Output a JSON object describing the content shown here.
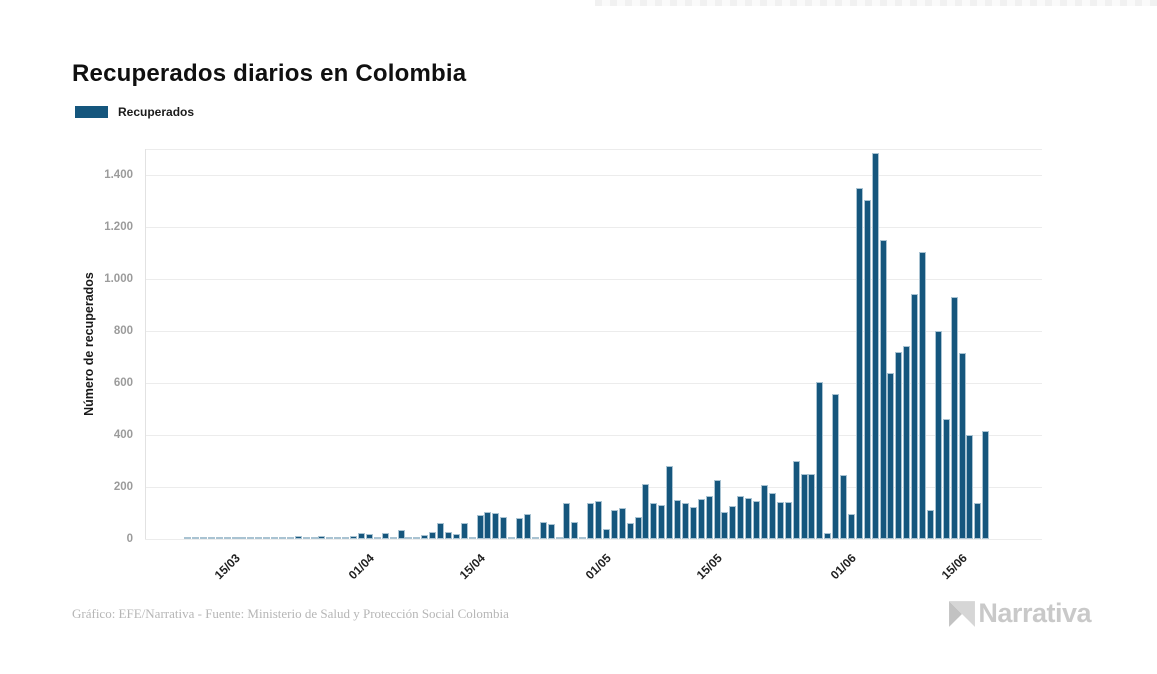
{
  "title": "Recuperados diarios en Colombia",
  "legend": {
    "label": "Recuperados"
  },
  "footer": {
    "credit": "Gráfico: EFE/Narrativa - Fuente: Ministerio de Salud y Protección Social Colombia",
    "logo_text": "Narrativa"
  },
  "colors": {
    "bar_fill": "#15567D",
    "bar_outline": "#A9C3D2",
    "grid": "#ECECEC",
    "axis": "#E2E2E2",
    "ytick_text": "#9B9B9B",
    "xtick_text": "#1F1F1F",
    "title_text": "#101010",
    "footer_text": "#B6B6B6",
    "logo_text": "#C9C9C9"
  },
  "chart_data": {
    "type": "bar",
    "title": "Recuperados diarios en Colombia",
    "series_name": "Recuperados",
    "xlabel": "",
    "ylabel": "Número de recuperados",
    "ylim": [
      0,
      1500
    ],
    "grid": true,
    "legend_position": "top-left",
    "yticks": [
      0,
      200,
      400,
      600,
      800,
      1000,
      1200,
      1400
    ],
    "ytick_labels": [
      "0",
      "200",
      "400",
      "600",
      "800",
      "1.000",
      "1.200",
      "1.400"
    ],
    "xticks": [
      "15/03",
      "01/04",
      "15/04",
      "01/05",
      "15/05",
      "01/06",
      "15/06"
    ],
    "x": [
      "09/03",
      "10/03",
      "11/03",
      "12/03",
      "13/03",
      "14/03",
      "15/03",
      "16/03",
      "17/03",
      "18/03",
      "19/03",
      "20/03",
      "21/03",
      "22/03",
      "23/03",
      "24/03",
      "25/03",
      "26/03",
      "27/03",
      "28/03",
      "29/03",
      "30/03",
      "31/03",
      "01/04",
      "02/04",
      "03/04",
      "04/04",
      "05/04",
      "06/04",
      "07/04",
      "08/04",
      "09/04",
      "10/04",
      "11/04",
      "12/04",
      "13/04",
      "14/04",
      "15/04",
      "16/04",
      "17/04",
      "18/04",
      "19/04",
      "20/04",
      "21/04",
      "22/04",
      "23/04",
      "24/04",
      "25/04",
      "26/04",
      "27/04",
      "28/04",
      "29/04",
      "30/04",
      "01/05",
      "02/05",
      "03/05",
      "04/05",
      "05/05",
      "06/05",
      "07/05",
      "08/05",
      "09/05",
      "10/05",
      "11/05",
      "12/05",
      "13/05",
      "14/05",
      "15/05",
      "16/05",
      "17/05",
      "18/05",
      "19/05",
      "20/05",
      "21/05",
      "22/05",
      "23/05",
      "24/05",
      "25/05",
      "26/05",
      "27/05",
      "28/05",
      "29/05",
      "30/05",
      "31/05",
      "01/06",
      "02/06",
      "03/06",
      "04/06",
      "05/06",
      "06/06",
      "07/06",
      "08/06",
      "09/06",
      "10/06",
      "11/06",
      "12/06",
      "13/06",
      "14/06",
      "15/06",
      "16/06",
      "17/06",
      "18/06"
    ],
    "values": [
      0,
      0,
      0,
      0,
      0,
      0,
      0,
      0,
      0,
      0,
      0,
      0,
      0,
      0,
      10,
      0,
      3,
      10,
      0,
      2,
      2,
      13,
      22,
      19,
      9,
      22,
      0,
      35,
      0,
      2,
      15,
      28,
      60,
      25,
      20,
      63,
      2,
      92,
      102,
      100,
      84,
      0,
      80,
      96,
      0,
      67,
      58,
      0,
      140,
      67,
      0,
      137,
      145,
      37,
      110,
      118,
      60,
      85,
      210,
      140,
      130,
      280,
      150,
      137,
      122,
      152,
      165,
      227,
      105,
      128,
      165,
      158,
      148,
      208,
      178,
      143,
      143,
      300,
      250,
      250,
      605,
      22,
      558,
      246,
      96,
      1350,
      1304,
      1483,
      1150,
      637,
      720,
      743,
      942,
      1105,
      111,
      801,
      460,
      929,
      714,
      399,
      137,
      417
    ]
  }
}
